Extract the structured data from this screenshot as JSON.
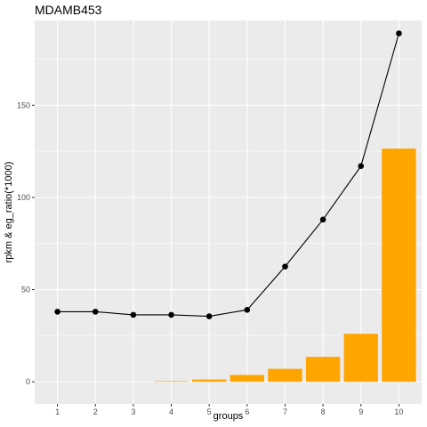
{
  "chart_data": {
    "type": "bar",
    "title": "MDAMB453",
    "xlabel": "groups",
    "ylabel": "rpkm & eg_ratio(*1000)",
    "categories": [
      "1",
      "2",
      "3",
      "4",
      "5",
      "6",
      "7",
      "8",
      "9",
      "10"
    ],
    "ylim": [
      -12,
      196
    ],
    "yticks": [
      0,
      50,
      100,
      150
    ],
    "grid": true,
    "series": [
      {
        "type": "bar",
        "values": [
          0,
          0,
          0,
          0.3,
          1.2,
          3.7,
          7.0,
          13.5,
          26.0,
          126.5
        ]
      },
      {
        "type": "line",
        "values": [
          38.0,
          38.0,
          36.3,
          36.3,
          35.5,
          39.0,
          62.5,
          88.0,
          117.0,
          189.0
        ]
      }
    ],
    "colors": {
      "panel_bg": "#ebebeb",
      "grid_major": "#ffffff",
      "bar": "#ffa500",
      "line": "#000000",
      "point": "#000000",
      "tick": "#333333"
    }
  }
}
